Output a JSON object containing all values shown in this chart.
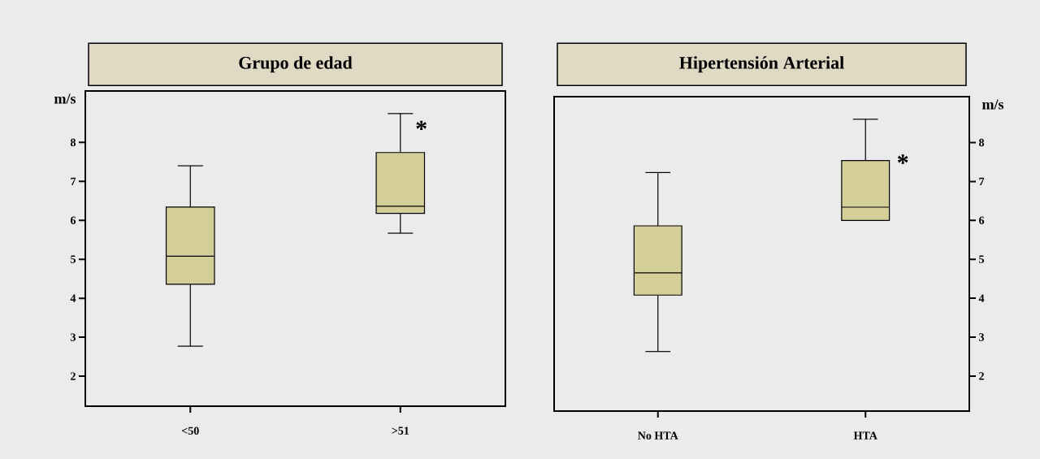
{
  "chart_data": [
    {
      "type": "box",
      "title": "Grupo de edad",
      "ylabel": "m/s",
      "categories": [
        "<50",
        ">51"
      ],
      "color": "#d4cf98",
      "boxes": [
        {
          "low": 2.77,
          "q1": 4.36,
          "median": 5.08,
          "q3": 6.34,
          "high": 7.4
        },
        {
          "low": 5.67,
          "q1": 6.18,
          "median": 6.36,
          "q3": 7.74,
          "high": 8.74
        }
      ],
      "ylim": [
        1.23,
        9.32
      ],
      "yticks": [
        2,
        3,
        4,
        5,
        6,
        7,
        8
      ],
      "annotations": [
        "*"
      ]
    },
    {
      "type": "box",
      "title": "Hipertensión Arterial",
      "ylabel": "m/s",
      "categories": [
        "No HTA",
        "HTA"
      ],
      "color": "#d4cf98",
      "boxes": [
        {
          "low": 2.63,
          "q1": 4.08,
          "median": 4.65,
          "q3": 5.86,
          "high": 7.23
        },
        {
          "low": 6.0,
          "q1": 6.0,
          "median": 6.34,
          "q3": 7.54,
          "high": 8.6
        }
      ],
      "ylim": [
        1.1,
        9.18
      ],
      "yticks": [
        2,
        3,
        4,
        5,
        6,
        7,
        8
      ],
      "annotations": [
        "*"
      ]
    }
  ]
}
